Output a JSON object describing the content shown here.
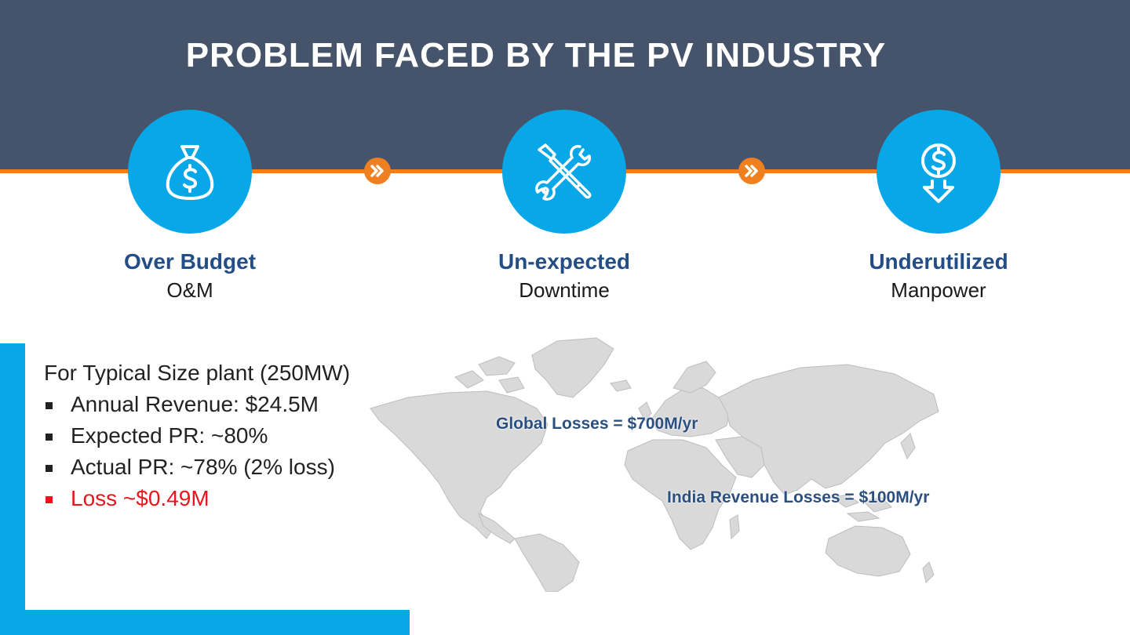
{
  "title": "PROBLEM FACED BY THE PV INDUSTRY",
  "problems": [
    {
      "title": "Over Budget",
      "subtitle": "O&M",
      "icon": "money-bag-icon"
    },
    {
      "title": "Un-expected",
      "subtitle": "Downtime",
      "icon": "tools-icon"
    },
    {
      "title": "Underutilized",
      "subtitle": "Manpower",
      "icon": "dollar-down-icon"
    }
  ],
  "plant": {
    "intro": "For Typical Size plant (250MW)",
    "bullets": [
      {
        "text": "Annual Revenue: $24.5M"
      },
      {
        "text": "Expected PR: ~80%"
      },
      {
        "text": "Actual PR: ~78% (2% loss)"
      }
    ],
    "loss": "Loss ~$0.49M"
  },
  "map": {
    "global_label": "Global Losses = $700M/yr",
    "india_label": "India Revenue Losses = $100M/yr"
  },
  "colors": {
    "header": "#46546b",
    "accent_orange": "#f07f1f",
    "circle_blue": "#08a7e7",
    "label_blue": "#234d86",
    "loss_red": "#e8161b"
  }
}
